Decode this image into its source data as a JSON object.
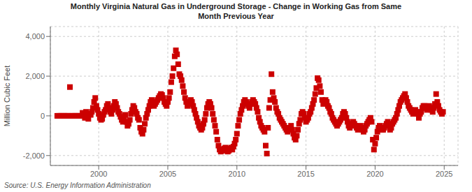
{
  "chart_data": {
    "type": "scatter",
    "title": "Monthly Virginia Natural Gas in Underground Storage - Change in Working Gas from Same\nMonth Previous Year",
    "y_label": "Million Cubic Feet",
    "annotations": [
      "Source: U.S. Energy Information Administration"
    ],
    "color": "#cc0000",
    "marker": "square",
    "grid": true,
    "xlim": [
      1996.5,
      2026.0
    ],
    "ylim": [
      -2500,
      4500
    ],
    "xticks": [
      2000,
      2005,
      2010,
      2015,
      2020,
      2025
    ],
    "yticks": [
      {
        "value": -2000,
        "label": "-2,000"
      },
      0,
      {
        "value": 2000,
        "label": "2,000"
      },
      {
        "value": 4000,
        "label": "4,000"
      }
    ],
    "x": [
      1997,
      1997.0833333333333,
      1997.1666666666667,
      1997.25,
      1997.3333333333333,
      1997.4166666666667,
      1997.5,
      1997.5833333333333,
      1997.6666666666667,
      1997.75,
      1997.8333333333333,
      1997.9166666666667,
      1998,
      1998.0833333333333,
      1998.1666666666667,
      1998.25,
      1998.3333333333333,
      1998.4166666666667,
      1998.5,
      1998.5833333333333,
      1998.6666666666667,
      1998.75,
      1998.8333333333333,
      1998.9166666666667,
      1999,
      1999.0833333333333,
      1999.1666666666667,
      1999.25,
      1999.3333333333333,
      1999.4166666666667,
      1999.5,
      1999.5833333333333,
      1999.6666666666667,
      1999.75,
      1999.8333333333333,
      1999.9166666666667,
      2000,
      2000.0833333333333,
      2000.1666666666667,
      2000.25,
      2000.3333333333333,
      2000.4166666666667,
      2000.5,
      2000.5833333333333,
      2000.6666666666667,
      2000.75,
      2000.8333333333333,
      2000.9166666666667,
      2001,
      2001.0833333333333,
      2001.1666666666667,
      2001.25,
      2001.3333333333333,
      2001.4166666666667,
      2001.5,
      2001.5833333333333,
      2001.6666666666667,
      2001.75,
      2001.8333333333333,
      2001.9166666666667,
      2002,
      2002.0833333333333,
      2002.1666666666667,
      2002.25,
      2002.3333333333333,
      2002.4166666666667,
      2002.5,
      2002.5833333333333,
      2002.6666666666667,
      2002.75,
      2002.8333333333333,
      2002.9166666666667,
      2003,
      2003.0833333333333,
      2003.1666666666667,
      2003.25,
      2003.3333333333333,
      2003.4166666666667,
      2003.5,
      2003.5833333333333,
      2003.6666666666667,
      2003.75,
      2003.8333333333333,
      2003.9166666666667,
      2004,
      2004.0833333333333,
      2004.1666666666667,
      2004.25,
      2004.3333333333333,
      2004.4166666666667,
      2004.5,
      2004.5833333333333,
      2004.6666666666667,
      2004.75,
      2004.8333333333333,
      2004.9166666666667,
      2005,
      2005.0833333333333,
      2005.1666666666667,
      2005.25,
      2005.3333333333333,
      2005.4166666666667,
      2005.5,
      2005.5833333333333,
      2005.6666666666667,
      2005.75,
      2005.8333333333333,
      2005.9166666666667,
      2006,
      2006.0833333333333,
      2006.1666666666667,
      2006.25,
      2006.3333333333333,
      2006.4166666666667,
      2006.5,
      2006.5833333333333,
      2006.6666666666667,
      2006.75,
      2006.8333333333333,
      2006.9166666666667,
      2007,
      2007.0833333333333,
      2007.1666666666667,
      2007.25,
      2007.3333333333333,
      2007.4166666666667,
      2007.5,
      2007.5833333333333,
      2007.6666666666667,
      2007.75,
      2007.8333333333333,
      2007.9166666666667,
      2008,
      2008.0833333333333,
      2008.1666666666667,
      2008.25,
      2008.3333333333333,
      2008.4166666666667,
      2008.5,
      2008.5833333333333,
      2008.6666666666667,
      2008.75,
      2008.8333333333333,
      2008.9166666666667,
      2009,
      2009.0833333333333,
      2009.1666666666667,
      2009.25,
      2009.3333333333333,
      2009.4166666666667,
      2009.5,
      2009.5833333333333,
      2009.6666666666667,
      2009.75,
      2009.8333333333333,
      2009.9166666666667,
      2010,
      2010.0833333333333,
      2010.1666666666667,
      2010.25,
      2010.3333333333333,
      2010.4166666666667,
      2010.5,
      2010.5833333333333,
      2010.6666666666667,
      2010.75,
      2010.8333333333333,
      2010.9166666666667,
      2011,
      2011.0833333333333,
      2011.1666666666667,
      2011.25,
      2011.3333333333333,
      2011.4166666666667,
      2011.5,
      2011.5833333333333,
      2011.6666666666667,
      2011.75,
      2011.8333333333333,
      2011.9166666666667,
      2012,
      2012.0833333333333,
      2012.1666666666667,
      2012.25,
      2012.3333333333333,
      2012.4166666666667,
      2012.5,
      2012.5833333333333,
      2012.6666666666667,
      2012.75,
      2012.8333333333333,
      2012.9166666666667,
      2013,
      2013.0833333333333,
      2013.1666666666667,
      2013.25,
      2013.3333333333333,
      2013.4166666666667,
      2013.5,
      2013.5833333333333,
      2013.6666666666667,
      2013.75,
      2013.8333333333333,
      2013.9166666666667,
      2014,
      2014.0833333333333,
      2014.1666666666667,
      2014.25,
      2014.3333333333333,
      2014.4166666666667,
      2014.5,
      2014.5833333333333,
      2014.6666666666667,
      2014.75,
      2014.8333333333333,
      2014.9166666666667,
      2015,
      2015.0833333333333,
      2015.1666666666667,
      2015.25,
      2015.3333333333333,
      2015.4166666666667,
      2015.5,
      2015.5833333333333,
      2015.6666666666667,
      2015.75,
      2015.8333333333333,
      2015.9166666666667,
      2016,
      2016.0833333333333,
      2016.1666666666667,
      2016.25,
      2016.3333333333333,
      2016.4166666666667,
      2016.5,
      2016.5833333333333,
      2016.6666666666667,
      2016.75,
      2016.8333333333333,
      2016.9166666666667,
      2017,
      2017.0833333333333,
      2017.1666666666667,
      2017.25,
      2017.3333333333333,
      2017.4166666666667,
      2017.5,
      2017.5833333333333,
      2017.6666666666667,
      2017.75,
      2017.8333333333333,
      2017.9166666666667,
      2018,
      2018.0833333333333,
      2018.1666666666667,
      2018.25,
      2018.3333333333333,
      2018.4166666666667,
      2018.5,
      2018.5833333333333,
      2018.6666666666667,
      2018.75,
      2018.8333333333333,
      2018.9166666666667,
      2019,
      2019.0833333333333,
      2019.1666666666667,
      2019.25,
      2019.3333333333333,
      2019.4166666666667,
      2019.5,
      2019.5833333333333,
      2019.6666666666667,
      2019.75,
      2019.8333333333333,
      2019.9166666666667,
      2020,
      2020.0833333333333,
      2020.1666666666667,
      2020.25,
      2020.3333333333333,
      2020.4166666666667,
      2020.5,
      2020.5833333333333,
      2020.6666666666667,
      2020.75,
      2020.8333333333333,
      2020.9166666666667,
      2021,
      2021.0833333333333,
      2021.1666666666667,
      2021.25,
      2021.3333333333333,
      2021.4166666666667,
      2021.5,
      2021.5833333333333,
      2021.6666666666667,
      2021.75,
      2021.8333333333333,
      2021.9166666666667,
      2022,
      2022.0833333333333,
      2022.1666666666667,
      2022.25,
      2022.3333333333333,
      2022.4166666666667,
      2022.5,
      2022.5833333333333,
      2022.6666666666667,
      2022.75,
      2022.8333333333333,
      2022.9166666666667,
      2023,
      2023.0833333333333,
      2023.1666666666667,
      2023.25,
      2023.3333333333333,
      2023.4166666666667,
      2023.5,
      2023.5833333333333,
      2023.6666666666667,
      2023.75,
      2023.8333333333333,
      2023.9166666666667,
      2024,
      2024.0833333333333,
      2024.1666666666667,
      2024.25,
      2024.3333333333333,
      2024.4166666666667,
      2024.5,
      2024.5833333333333,
      2024.6666666666667,
      2024.75,
      2024.8333333333333,
      2024.9166666666667
    ],
    "values": [
      0,
      0,
      0,
      0,
      0,
      0,
      0,
      0,
      0,
      0,
      0,
      1450,
      0,
      0,
      0,
      0,
      0,
      0,
      0,
      0,
      0,
      0,
      150,
      0,
      -100,
      200,
      100,
      -150,
      100,
      50,
      200,
      400,
      700,
      900,
      500,
      300,
      100,
      -100,
      -200,
      -150,
      50,
      200,
      300,
      500,
      600,
      400,
      200,
      100,
      300,
      500,
      700,
      600,
      400,
      200,
      100,
      -50,
      -200,
      -300,
      -150,
      50,
      -300,
      -500,
      -400,
      -200,
      100,
      300,
      500,
      400,
      200,
      100,
      -100,
      -200,
      -600,
      -800,
      -900,
      -700,
      -400,
      -100,
      100,
      300,
      500,
      700,
      800,
      700,
      500,
      600,
      700,
      800,
      900,
      1000,
      1100,
      1050,
      900,
      700,
      600,
      500,
      700,
      900,
      1200,
      1700,
      2000,
      2400,
      3000,
      3300,
      3100,
      2600,
      2100,
      2000,
      1800,
      1500,
      1200,
      900,
      700,
      500,
      600,
      700,
      800,
      700,
      500,
      300,
      100,
      -100,
      -300,
      -500,
      -600,
      -700,
      -600,
      -400,
      -200,
      100,
      400,
      600,
      700,
      600,
      400,
      100,
      -200,
      -500,
      -800,
      -1200,
      -1500,
      -1700,
      -1800,
      -1750,
      -1700,
      -1650,
      -1600,
      -1750,
      -1800,
      -1750,
      -1650,
      -1600,
      -1700,
      -1550,
      -1400,
      -1200,
      -900,
      -500,
      -200,
      100,
      300,
      500,
      700,
      800,
      700,
      600,
      500,
      400,
      600,
      700,
      800,
      700,
      600,
      400,
      200,
      -100,
      -300,
      -500,
      -600,
      -700,
      -800,
      -1500,
      -1900,
      -600,
      400,
      800,
      2100,
      1200,
      900,
      700,
      400,
      200,
      100,
      -100,
      -200,
      -300,
      -400,
      -500,
      -600,
      -700,
      -800,
      -700,
      -600,
      -500,
      -700,
      -900,
      -1100,
      -1200,
      -1000,
      -700,
      -400,
      -200,
      100,
      200,
      100,
      -100,
      -300,
      -200,
      -100,
      100,
      200,
      400,
      600,
      800,
      1100,
      1400,
      1900,
      1800,
      1500,
      1200,
      800,
      600,
      700,
      800,
      700,
      500,
      400,
      200,
      100,
      -100,
      -200,
      -300,
      -400,
      -500,
      -400,
      -300,
      -200,
      -100,
      100,
      200,
      100,
      -100,
      -300,
      -500,
      -600,
      -500,
      -400,
      -300,
      -400,
      -500,
      -600,
      -700,
      -600,
      -500,
      -600,
      -700,
      -800,
      -700,
      -500,
      -400,
      -300,
      -200,
      -100,
      -300,
      -1200,
      -1700,
      -1400,
      -1100,
      -800,
      -600,
      -500,
      -600,
      -700,
      -700,
      -600,
      -500,
      -400,
      -300,
      -500,
      -700,
      -600,
      -400,
      -300,
      -200,
      -100,
      100,
      300,
      500,
      700,
      800,
      900,
      1000,
      1100,
      900,
      700,
      500,
      400,
      300,
      200,
      100,
      200,
      300,
      200,
      100,
      -100,
      100,
      200,
      400,
      500,
      500,
      400,
      300,
      400,
      500,
      400,
      300,
      200,
      400,
      600,
      1100,
      700,
      500,
      300,
      200,
      100,
      200
    ]
  }
}
